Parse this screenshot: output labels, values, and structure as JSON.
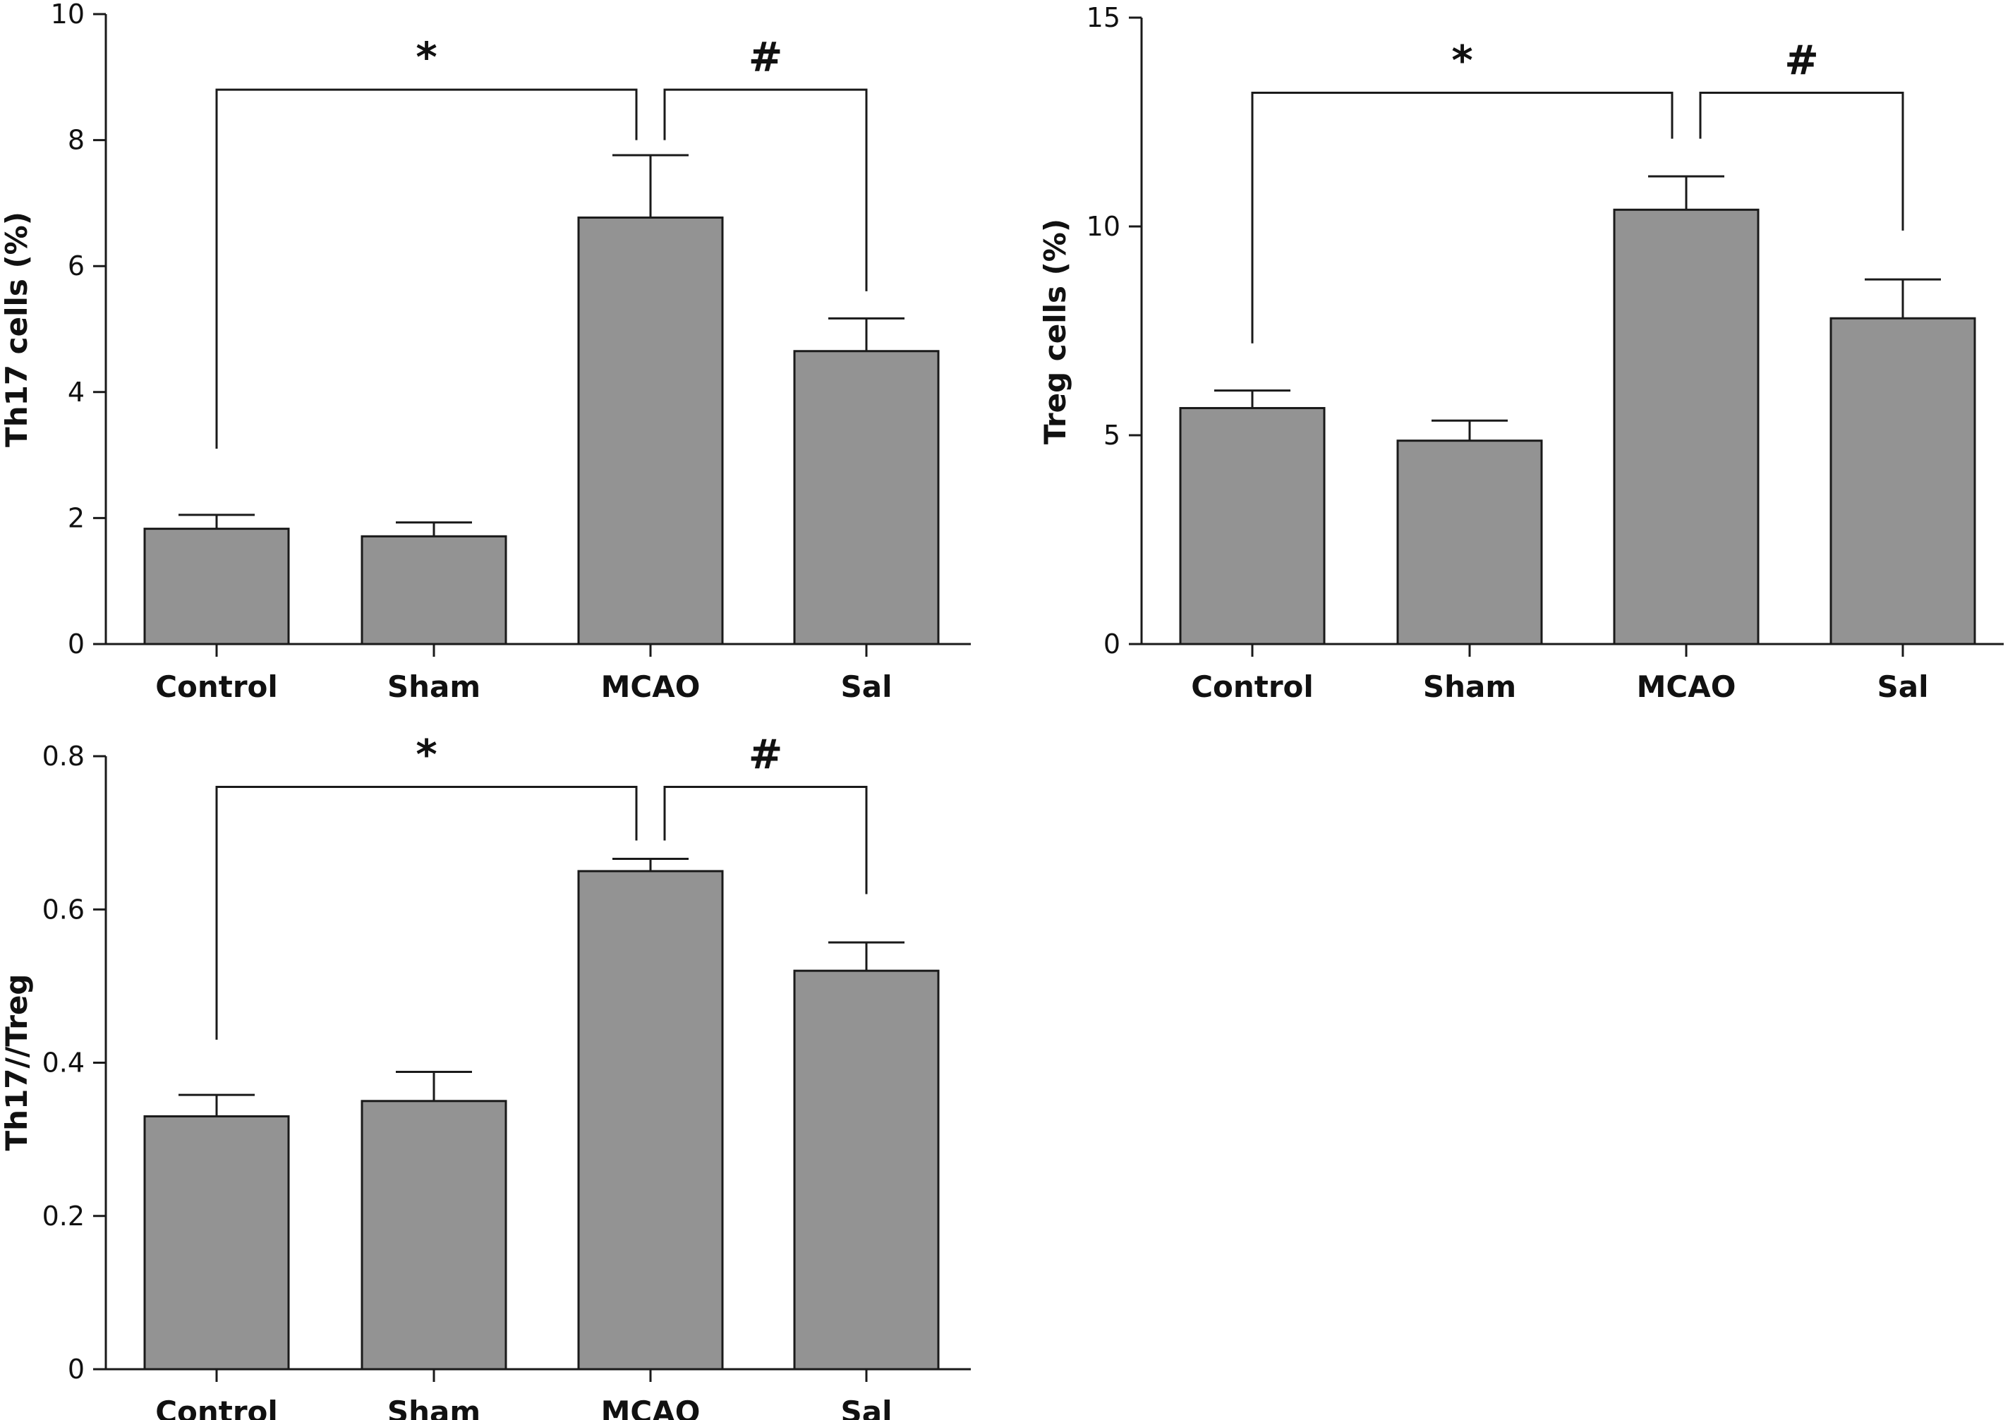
{
  "figure": {
    "bar_color": "#939393",
    "bar_stroke": "#1a1a1a",
    "line_color": "#1a1a1a"
  },
  "chart_data": [
    {
      "type": "bar",
      "categories": [
        "Control",
        "Sham",
        "MCAO",
        "Sal"
      ],
      "values": [
        1.83,
        1.71,
        6.77,
        4.65
      ],
      "errors": [
        0.22,
        0.22,
        0.99,
        0.52
      ],
      "ylabel": "Th17 cells (%)",
      "xlabel": "",
      "ylim": [
        0,
        10
      ],
      "yticks": [
        0,
        2,
        4,
        6,
        8,
        10
      ],
      "ytick_labels": [
        "0",
        "2",
        "4",
        "6",
        "8",
        "10"
      ],
      "grid": false,
      "significance": [
        {
          "label": "*",
          "from": 0,
          "to": 2,
          "bracket_y": 8.8,
          "left_end": 3.1,
          "right_end": 8.0
        },
        {
          "label": "#",
          "from": 2,
          "to": 3,
          "bracket_y": 8.8,
          "left_end": 8.0,
          "right_end": 5.6
        }
      ]
    },
    {
      "type": "bar",
      "categories": [
        "Control",
        "Sham",
        "MCAO",
        "Sal"
      ],
      "values": [
        5.65,
        4.87,
        10.4,
        7.8
      ],
      "errors": [
        0.42,
        0.48,
        0.8,
        0.93
      ],
      "ylabel": "Treg cells (%)",
      "xlabel": "",
      "ylim": [
        0,
        15
      ],
      "yticks": [
        0,
        5,
        10,
        15
      ],
      "ytick_labels": [
        "0",
        "5",
        "10",
        "15"
      ],
      "grid": false,
      "significance": [
        {
          "label": "*",
          "from": 0,
          "to": 2,
          "bracket_y": 13.2,
          "left_end": 7.2,
          "right_end": 12.1
        },
        {
          "label": "#",
          "from": 2,
          "to": 3,
          "bracket_y": 13.2,
          "left_end": 12.1,
          "right_end": 9.9
        }
      ]
    },
    {
      "type": "bar",
      "categories": [
        "Control",
        "Sham",
        "MCAO",
        "Sal"
      ],
      "values": [
        0.33,
        0.35,
        0.65,
        0.52
      ],
      "errors": [
        0.028,
        0.038,
        0.016,
        0.037
      ],
      "ylabel": "Th17//Treg",
      "xlabel": "",
      "ylim": [
        0,
        0.8
      ],
      "yticks": [
        0,
        0.2,
        0.4,
        0.6,
        0.8
      ],
      "ytick_labels": [
        "0",
        "0.2",
        "0.4",
        "0.6",
        "0.8"
      ],
      "grid": false,
      "significance": [
        {
          "label": "*",
          "from": 0,
          "to": 2,
          "bracket_y": 0.76,
          "left_end": 0.43,
          "right_end": 0.69
        },
        {
          "label": "#",
          "from": 2,
          "to": 3,
          "bracket_y": 0.76,
          "left_end": 0.69,
          "right_end": 0.62
        }
      ]
    }
  ]
}
